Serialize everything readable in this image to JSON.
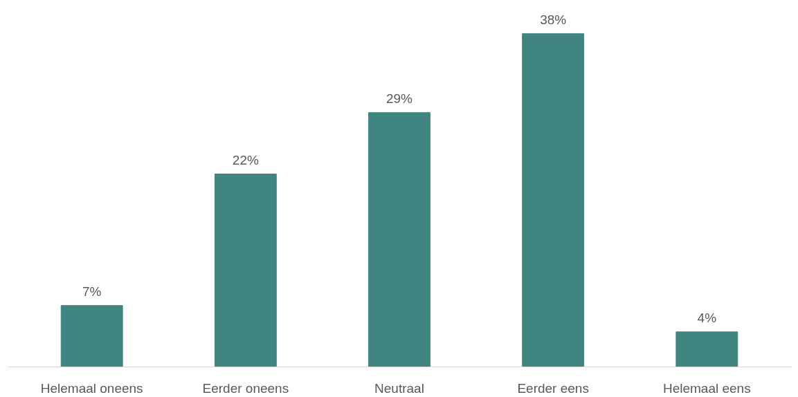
{
  "chart_data": {
    "type": "bar",
    "categories": [
      "Helemaal oneens",
      "Eerder oneens",
      "Neutraal",
      "Eerder eens",
      "Helemaal eens"
    ],
    "values": [
      7,
      22,
      29,
      38,
      4
    ],
    "value_labels": [
      "7%",
      "22%",
      "29%",
      "38%",
      "4%"
    ],
    "color": "#40857f"
  }
}
